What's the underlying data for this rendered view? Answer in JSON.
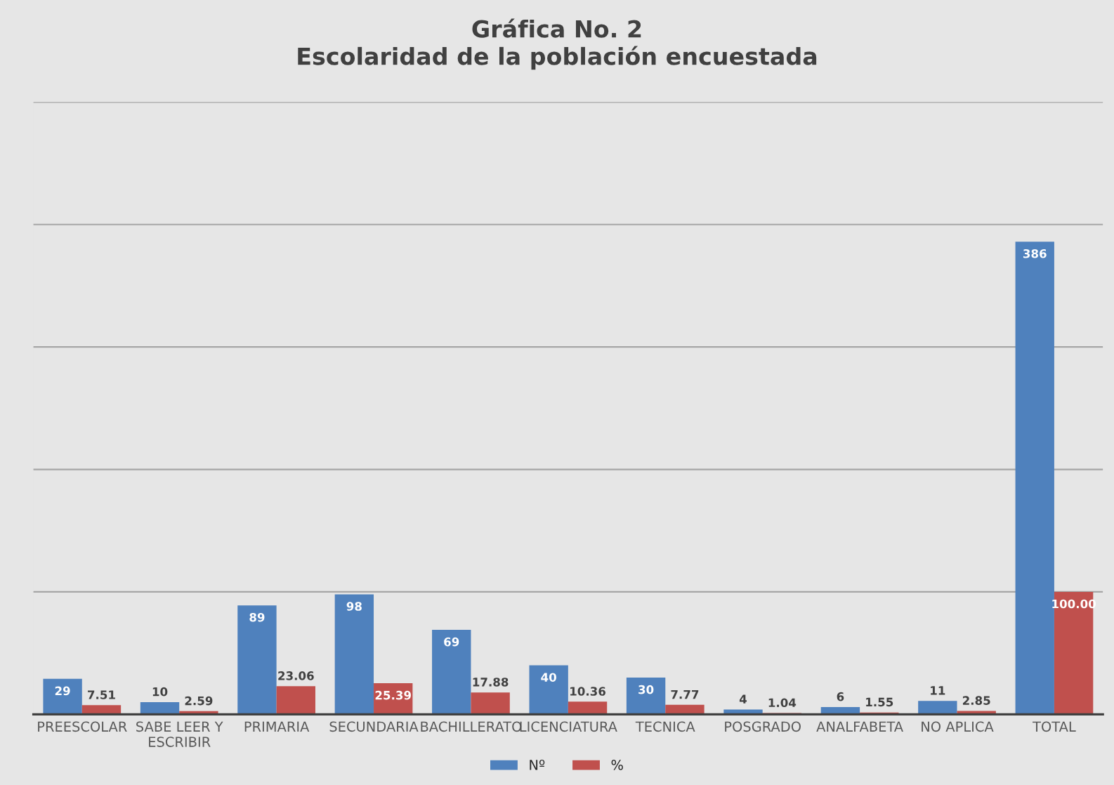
{
  "chart_data": {
    "type": "bar",
    "title": "Gráfica No. 2\nEscolaridad de la población encuestada",
    "categories": [
      "PREESCOLAR",
      "SABE LEER Y\nESCRIBIR",
      "PRIMARIA",
      "SECUNDARIA",
      "BACHILLERATO",
      "LICENCIATURA",
      "TECNICA",
      "POSGRADO",
      "ANALFABETA",
      "NO APLICA",
      "TOTAL"
    ],
    "series": [
      {
        "name": "Nº",
        "color": "#4f81bd",
        "values": [
          29,
          10,
          89,
          98,
          69,
          40,
          30,
          4,
          6,
          11,
          386
        ],
        "value_labels": [
          "29",
          "10",
          "89",
          "98",
          "69",
          "40",
          "30",
          "4",
          "6",
          "11",
          "386"
        ]
      },
      {
        "name": "%",
        "color": "#c0504d",
        "values": [
          7.51,
          2.59,
          23.06,
          25.39,
          17.88,
          10.36,
          7.77,
          1.04,
          1.55,
          2.85,
          100.0
        ],
        "value_labels": [
          "7.51",
          "2.59",
          "23.06",
          "25.39",
          "17.88",
          "10.36",
          "7.77",
          "1.04",
          "1.55",
          "2.85",
          "100.00"
        ]
      }
    ],
    "ylim": [
      0,
      500
    ],
    "yticks": [
      {
        "value": 0,
        "label": null
      },
      {
        "value": 100,
        "label": null
      },
      {
        "value": 200,
        "label": null
      },
      {
        "value": 300,
        "label": null
      },
      {
        "value": 400,
        "label": null
      },
      {
        "value": 500,
        "label": null
      }
    ],
    "tick_labels": "x",
    "grid": "y",
    "legend": "bottom"
  }
}
